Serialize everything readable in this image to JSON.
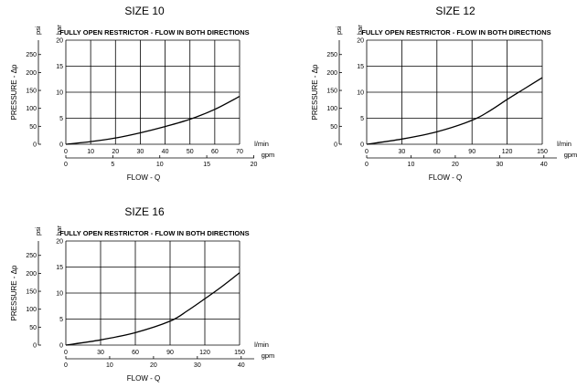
{
  "chart_data": [
    {
      "type": "line",
      "title": "SIZE 10",
      "annotation": "FULLY OPEN RESTRICTOR - FLOW IN BOTH DIRECTIONS",
      "xlabel": "FLOW - Q",
      "ylabel": "PRESSURE - Δp",
      "x_unit_primary": "l/min",
      "x_unit_secondary": "gpm",
      "y_unit_primary": "bar",
      "y_unit_secondary": "psi",
      "xlim": [
        0,
        70
      ],
      "ylim": [
        0,
        20
      ],
      "x_ticks": [
        "0",
        "10",
        "20",
        "30",
        "40",
        "50",
        "60",
        "70"
      ],
      "x2_ticks": [
        "0",
        "5",
        "10",
        "15",
        "20"
      ],
      "x2_factor": 3.785,
      "y_ticks": [
        "0",
        "5",
        "10",
        "15",
        "20"
      ],
      "y2_ticks": [
        "0",
        "50",
        "100",
        "150",
        "200",
        "250"
      ],
      "y2_factor": 0.06895,
      "grid": true,
      "series": [
        {
          "x": [
            0,
            10,
            20,
            30,
            40,
            50,
            60,
            70
          ],
          "y": [
            0,
            0.5,
            1.2,
            2.2,
            3.4,
            4.8,
            6.7,
            9.2
          ]
        }
      ]
    },
    {
      "type": "line",
      "title": "SIZE 12",
      "annotation": "FULLY OPEN RESTRICTOR - FLOW IN BOTH DIRECTIONS",
      "xlabel": "FLOW - Q",
      "ylabel": "PRESSURE - Δp",
      "x_unit_primary": "l/min",
      "x_unit_secondary": "gpm",
      "y_unit_primary": "bar",
      "y_unit_secondary": "psi",
      "xlim": [
        0,
        150
      ],
      "ylim": [
        0,
        20
      ],
      "x_ticks": [
        "0",
        "30",
        "60",
        "90",
        "120",
        "150"
      ],
      "x2_ticks": [
        "0",
        "10",
        "20",
        "30",
        "40"
      ],
      "x2_factor": 3.785,
      "y_ticks": [
        "0",
        "5",
        "10",
        "15",
        "20"
      ],
      "y2_ticks": [
        "0",
        "50",
        "100",
        "150",
        "200",
        "250"
      ],
      "y2_factor": 0.06895,
      "grid": true,
      "series": [
        {
          "x": [
            0,
            30,
            60,
            90,
            105,
            120,
            135,
            150
          ],
          "y": [
            0,
            1,
            2.4,
            4.6,
            6.4,
            8.6,
            10.7,
            12.8
          ]
        }
      ]
    },
    {
      "type": "line",
      "title": "SIZE 16",
      "annotation": "FULLY OPEN RESTRICTOR - FLOW IN BOTH DIRECTIONS",
      "xlabel": "FLOW - Q",
      "ylabel": "PRESSURE - Δp",
      "x_unit_primary": "l/min",
      "x_unit_secondary": "gpm",
      "y_unit_primary": "bar",
      "y_unit_secondary": "psi",
      "xlim": [
        0,
        150
      ],
      "ylim": [
        0,
        20
      ],
      "x_ticks": [
        "0",
        "30",
        "60",
        "90",
        "120",
        "150"
      ],
      "x2_ticks": [
        "0",
        "10",
        "20",
        "30",
        "40"
      ],
      "x2_factor": 3.785,
      "y_ticks": [
        "0",
        "5",
        "10",
        "15",
        "20"
      ],
      "y2_ticks": [
        "0",
        "50",
        "100",
        "150",
        "200",
        "250"
      ],
      "y2_factor": 0.06895,
      "grid": true,
      "series": [
        {
          "x": [
            0,
            30,
            60,
            90,
            105,
            120,
            135,
            150
          ],
          "y": [
            0,
            1,
            2.4,
            4.6,
            6.6,
            8.9,
            11.3,
            13.9
          ]
        }
      ]
    }
  ]
}
